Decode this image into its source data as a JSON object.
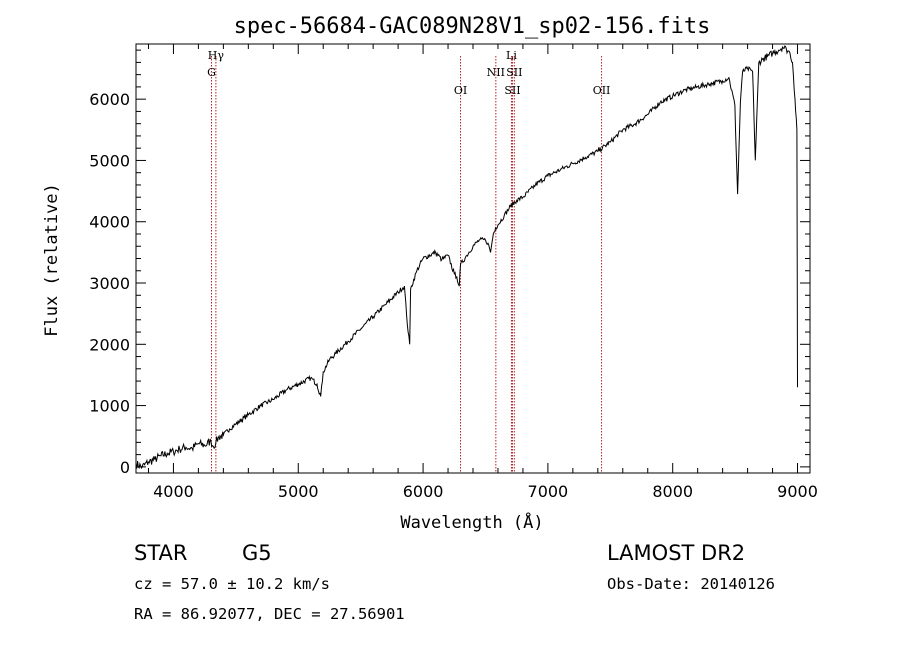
{
  "chart_data": {
    "type": "line",
    "title": "spec-56684-GAC089N28V1_sp02-156.fits",
    "xlabel": "Wavelength (Å)",
    "ylabel": "Flux (relative)",
    "xlim": [
      3700,
      9100
    ],
    "ylim": [
      -100,
      6900
    ],
    "xticks": [
      4000,
      5000,
      6000,
      7000,
      8000,
      9000
    ],
    "yticks": [
      0,
      1000,
      2000,
      3000,
      4000,
      5000,
      6000
    ],
    "grid": false,
    "line_color": "#000000",
    "marker_color": "#b22222",
    "series": [
      {
        "values_x": [
          3700,
          3750,
          3800,
          3850,
          3900,
          3950,
          4000,
          4050,
          4100,
          4150,
          4200,
          4250,
          4300,
          4320,
          4340,
          4360,
          4400,
          4450,
          4500,
          4600,
          4700,
          4800,
          4900,
          5000,
          5100,
          5150,
          5180,
          5200,
          5250,
          5300,
          5400,
          5500,
          5600,
          5700,
          5800,
          5850,
          5880,
          5893,
          5900,
          5950,
          6000,
          6100,
          6150,
          6200,
          6250,
          6270,
          6290,
          6300,
          6350,
          6400,
          6450,
          6500,
          6520,
          6540,
          6563,
          6580,
          6600,
          6650,
          6700,
          6750,
          6800,
          6900,
          7000,
          7100,
          7200,
          7300,
          7400,
          7500,
          7600,
          7700,
          7800,
          7900,
          8000,
          8100,
          8200,
          8300,
          8400,
          8450,
          8498,
          8520,
          8542,
          8560,
          8600,
          8640,
          8662,
          8690,
          8720,
          8760,
          8800,
          8850,
          8880,
          8910,
          8940,
          8960,
          8980,
          8995,
          9000
        ],
        "values_y": [
          50,
          0,
          80,
          120,
          180,
          220,
          250,
          290,
          320,
          300,
          380,
          350,
          420,
          330,
          400,
          480,
          520,
          620,
          700,
          850,
          1000,
          1100,
          1250,
          1350,
          1450,
          1350,
          1150,
          1550,
          1750,
          1850,
          2050,
          2250,
          2450,
          2650,
          2850,
          2950,
          2200,
          2000,
          2900,
          3200,
          3400,
          3500,
          3380,
          3450,
          3150,
          3100,
          2950,
          3300,
          3450,
          3600,
          3700,
          3700,
          3650,
          3500,
          3800,
          3900,
          3950,
          4100,
          4250,
          4350,
          4400,
          4600,
          4750,
          4850,
          4950,
          5050,
          5150,
          5300,
          5500,
          5600,
          5750,
          5950,
          6050,
          6150,
          6200,
          6250,
          6300,
          6350,
          5900,
          4450,
          5950,
          6450,
          6500,
          6450,
          5000,
          6600,
          6650,
          6700,
          6750,
          6800,
          6850,
          6820,
          6750,
          6600,
          6000,
          5500,
          1300
        ]
      }
    ],
    "spectral_lines": [
      {
        "label": "Hγ",
        "x": 4340
      },
      {
        "label": "G",
        "x": 4305
      },
      {
        "label": "OI",
        "x": 6300
      },
      {
        "label": "NII",
        "x": 6583
      },
      {
        "label": "Li",
        "x": 6708
      },
      {
        "label": "SII",
        "x": 6716
      },
      {
        "label": "SII",
        "x": 6731
      },
      {
        "label": "OII",
        "x": 7430
      }
    ]
  },
  "info": {
    "object_class": "STAR",
    "subclass": "G5",
    "survey": "LAMOST DR2",
    "cz": "cz = 57.0 ± 10.2 km/s",
    "obs_date": "Obs-Date: 20140126",
    "coords": "RA =  86.92077, DEC =  27.56901"
  }
}
